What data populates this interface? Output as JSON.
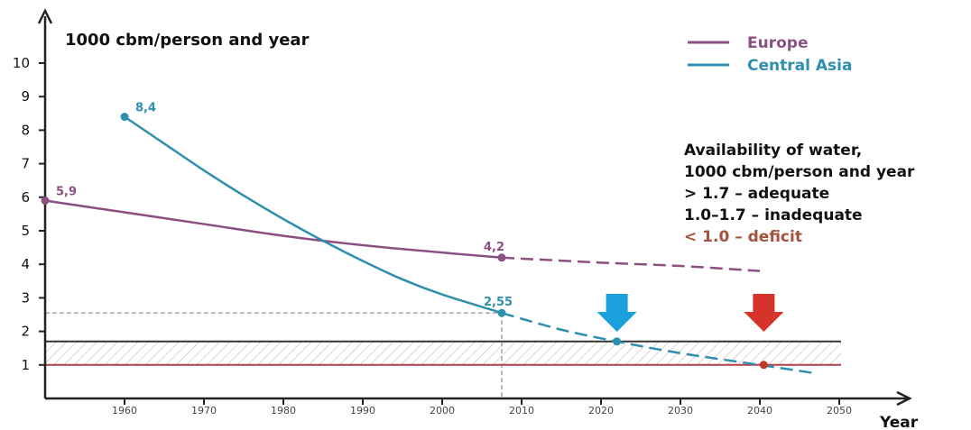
{
  "chart_data": {
    "type": "line",
    "ylabel": "1000 cbm/person and year",
    "xlabel": "Year",
    "xlim": [
      1950,
      2050
    ],
    "ylim": [
      0,
      10
    ],
    "y_ticks": [
      1,
      2,
      3,
      4,
      5,
      6,
      7,
      8,
      9,
      10
    ],
    "x_ticks": [
      1960,
      1970,
      1980,
      1990,
      2000,
      2010,
      2020,
      2030,
      2040,
      2050
    ],
    "legend_position": "top-right",
    "series": [
      {
        "name": "Europe",
        "color": "#8c4f82",
        "actual": [
          [
            1950,
            5.9
          ],
          [
            1960,
            5.55
          ],
          [
            1970,
            5.2
          ],
          [
            1980,
            4.85
          ],
          [
            1990,
            4.57
          ],
          [
            2000,
            4.35
          ],
          [
            2007.5,
            4.2
          ]
        ],
        "projected": [
          [
            2007.5,
            4.2
          ],
          [
            2020,
            4.05
          ],
          [
            2030,
            3.95
          ],
          [
            2040,
            3.8
          ]
        ],
        "labels": [
          {
            "x": 1950,
            "y": 5.9,
            "text": "5,9"
          },
          {
            "x": 2007.5,
            "y": 4.2,
            "text": "4,2"
          }
        ]
      },
      {
        "name": "Central Asia",
        "color": "#2e8fae",
        "actual": [
          [
            1960,
            8.4
          ],
          [
            1965,
            7.6
          ],
          [
            1970,
            6.8
          ],
          [
            1975,
            6.05
          ],
          [
            1980,
            5.35
          ],
          [
            1985,
            4.7
          ],
          [
            1990,
            4.1
          ],
          [
            1995,
            3.55
          ],
          [
            2000,
            3.1
          ],
          [
            2007.5,
            2.55
          ]
        ],
        "projected": [
          [
            2007.5,
            2.55
          ],
          [
            2015,
            2.05
          ],
          [
            2022,
            1.7
          ],
          [
            2030,
            1.35
          ],
          [
            2040,
            1.0
          ],
          [
            2047,
            0.75
          ]
        ],
        "labels": [
          {
            "x": 1960,
            "y": 8.4,
            "text": "8,4"
          },
          {
            "x": 2007.5,
            "y": 2.55,
            "text": "2,55"
          }
        ]
      }
    ],
    "thresholds": [
      {
        "value": 1.7,
        "color": "#333333"
      },
      {
        "value": 1.0,
        "color": "#b0404a"
      }
    ],
    "markers": [
      {
        "x": 2022,
        "y": 1.7,
        "color": "#2e8fae",
        "arrow_color": "#1aa0dc"
      },
      {
        "x": 2040.5,
        "y": 1.0,
        "color": "#c0392b",
        "arrow_color": "#d6332b"
      }
    ],
    "guide_point": {
      "x": 2007.5,
      "y": 2.55
    },
    "annotation": {
      "lines": [
        {
          "text": "Availability of water,",
          "color": "#111111"
        },
        {
          "text": "1000 cbm/person and year",
          "color": "#111111"
        },
        {
          "text": "> 1.7      – adequate",
          "color": "#111111"
        },
        {
          "text": "1.0–1.7 – inadequate",
          "color": "#111111"
        },
        {
          "text": "< 1.0      – deficit",
          "color": "#a3523c"
        }
      ]
    }
  }
}
